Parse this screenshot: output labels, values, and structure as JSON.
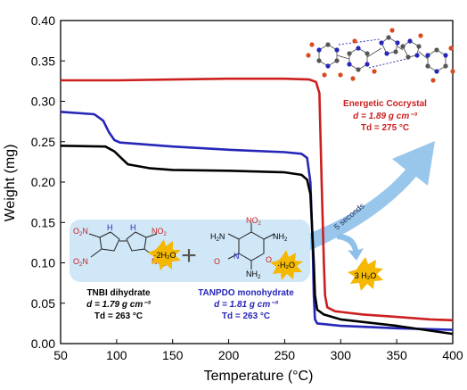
{
  "chart_data": {
    "type": "line",
    "title": "",
    "xlabel": "Temperature (°C)",
    "ylabel": "Weight (mg)",
    "xlim": [
      50,
      400
    ],
    "ylim": [
      0.0,
      0.4
    ],
    "x_ticks": [
      "50",
      "100",
      "150",
      "200",
      "250",
      "300",
      "350",
      "400"
    ],
    "y_ticks": [
      "0.00",
      "0.05",
      "0.10",
      "0.15",
      "0.20",
      "0.25",
      "0.30",
      "0.35",
      "0.40"
    ],
    "grid": false,
    "series": [
      {
        "color": "#cc1f1f",
        "points": [
          [
            50,
            0.326
          ],
          [
            100,
            0.326
          ],
          [
            150,
            0.327
          ],
          [
            200,
            0.328
          ],
          [
            250,
            0.328
          ],
          [
            272,
            0.327
          ],
          [
            278,
            0.324
          ],
          [
            281,
            0.31
          ],
          [
            283,
            0.2
          ],
          [
            285,
            0.1
          ],
          [
            286,
            0.06
          ],
          [
            288,
            0.045
          ],
          [
            295,
            0.04
          ],
          [
            320,
            0.036
          ],
          [
            350,
            0.033
          ],
          [
            380,
            0.03
          ],
          [
            400,
            0.029
          ]
        ]
      },
      {
        "color": "#2626b8",
        "points": [
          [
            50,
            0.287
          ],
          [
            80,
            0.284
          ],
          [
            88,
            0.276
          ],
          [
            93,
            0.262
          ],
          [
            98,
            0.252
          ],
          [
            103,
            0.249
          ],
          [
            150,
            0.244
          ],
          [
            200,
            0.24
          ],
          [
            250,
            0.237
          ],
          [
            265,
            0.235
          ],
          [
            270,
            0.23
          ],
          [
            273,
            0.2
          ],
          [
            275,
            0.12
          ],
          [
            276,
            0.06
          ],
          [
            277,
            0.03
          ],
          [
            279,
            0.025
          ],
          [
            300,
            0.022
          ],
          [
            350,
            0.019
          ],
          [
            400,
            0.017
          ]
        ]
      },
      {
        "color": "#000000",
        "points": [
          [
            50,
            0.245
          ],
          [
            90,
            0.244
          ],
          [
            98,
            0.238
          ],
          [
            104,
            0.23
          ],
          [
            110,
            0.222
          ],
          [
            130,
            0.217
          ],
          [
            150,
            0.215
          ],
          [
            200,
            0.214
          ],
          [
            250,
            0.212
          ],
          [
            265,
            0.209
          ],
          [
            270,
            0.203
          ],
          [
            273,
            0.185
          ],
          [
            276,
            0.1
          ],
          [
            277,
            0.06
          ],
          [
            279,
            0.042
          ],
          [
            285,
            0.036
          ],
          [
            300,
            0.03
          ],
          [
            350,
            0.022
          ],
          [
            400,
            0.012
          ]
        ]
      }
    ]
  },
  "annotations": {
    "tnbi_name": "TNBI dihydrate",
    "tnbi_density": "d = 1.79 g cm⁻³",
    "tnbi_td": "Td = 263 °C",
    "tnbi_water": "·2H₂O",
    "tanpdo_name": "TANPDO monohydrate",
    "tanpdo_density": "d = 1.81 g cm⁻³",
    "tanpdo_td": "Td = 263 °C",
    "tanpdo_water": "·H₂O",
    "cocrystal_name": "Energetic Cocrystal",
    "cocrystal_density": "d = 1.89 g cm⁻³",
    "cocrystal_td": "Td = 275 °C",
    "seconds": "5 seconds",
    "water_out": "3 H₂O",
    "plus": "+",
    "colors": {
      "red": "#cc1f1f",
      "blue": "#2626b8",
      "panel": "#cfe7f7",
      "arrow": "#8ec1ea",
      "burst": "#f5b800"
    }
  }
}
